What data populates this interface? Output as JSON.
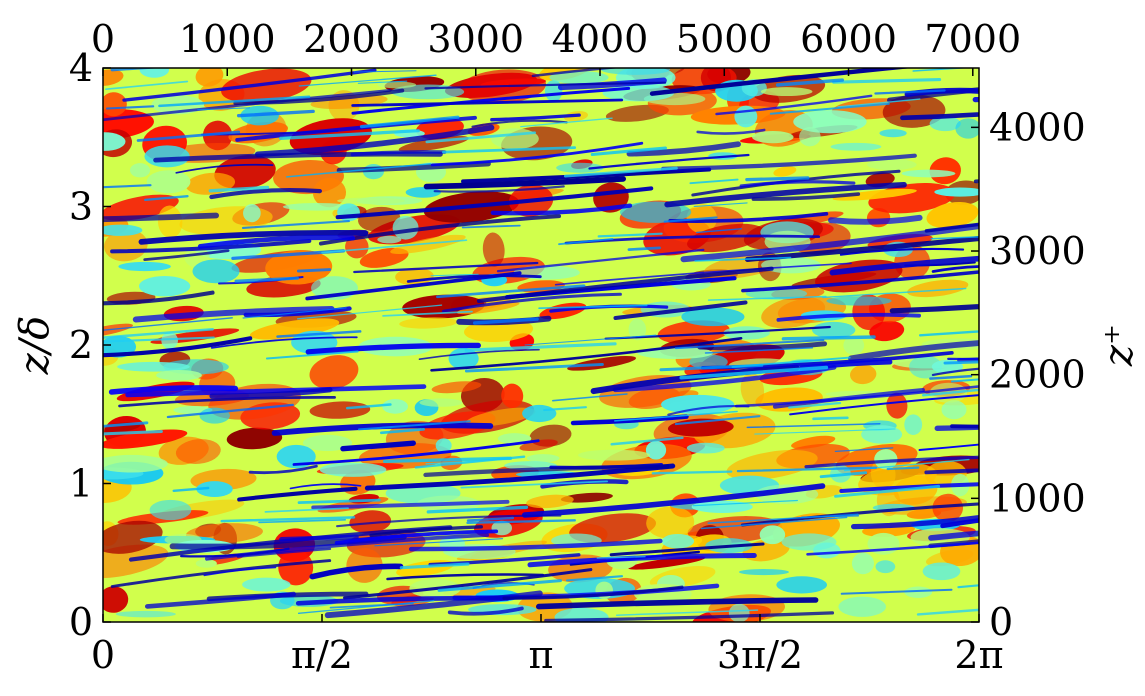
{
  "chart_data": {
    "type": "heatmap",
    "title": "",
    "xlabel": "",
    "ylabel": "z/δ",
    "x2label": "",
    "y2label": "z⁺",
    "x_bottom": {
      "range_label": "0 to 2π",
      "ticks": [
        {
          "value": 0,
          "label": "0"
        },
        {
          "value": 1.5708,
          "label": "π/2"
        },
        {
          "value": 3.1416,
          "label": "π"
        },
        {
          "value": 4.7124,
          "label": "3π/2"
        },
        {
          "value": 6.2832,
          "label": "2π"
        }
      ],
      "xlim": [
        0,
        6.2832
      ]
    },
    "x_top": {
      "ticks": [
        {
          "value": 0,
          "label": "0"
        },
        {
          "value": 1000,
          "label": "1000"
        },
        {
          "value": 2000,
          "label": "2000"
        },
        {
          "value": 3000,
          "label": "3000"
        },
        {
          "value": 4000,
          "label": "4000"
        },
        {
          "value": 5000,
          "label": "5000"
        },
        {
          "value": 6000,
          "label": "6000"
        },
        {
          "value": 7000,
          "label": "7000"
        }
      ],
      "xlim": [
        0,
        7050
      ]
    },
    "y_left": {
      "ticks": [
        {
          "value": 0,
          "label": "0"
        },
        {
          "value": 1,
          "label": "1"
        },
        {
          "value": 2,
          "label": "2"
        },
        {
          "value": 3,
          "label": "3"
        },
        {
          "value": 4,
          "label": "4"
        }
      ],
      "ylim": [
        0,
        4
      ]
    },
    "y_right": {
      "ticks": [
        {
          "value": 0,
          "label": "0"
        },
        {
          "value": 1000,
          "label": "1000"
        },
        {
          "value": 2000,
          "label": "2000"
        },
        {
          "value": 3000,
          "label": "3000"
        },
        {
          "value": 4000,
          "label": "4000"
        }
      ],
      "ylim": [
        0,
        4480
      ]
    },
    "colormap": [
      "#00008b",
      "#0000ff",
      "#00bfff",
      "#7fffd4",
      "#ffff00",
      "#ff8c00",
      "#ff0000",
      "#8b0000"
    ],
    "field_description_colors": {
      "low": "#0a1fd6",
      "mid": "#7ff5c8",
      "high": "#d81a0a"
    }
  }
}
